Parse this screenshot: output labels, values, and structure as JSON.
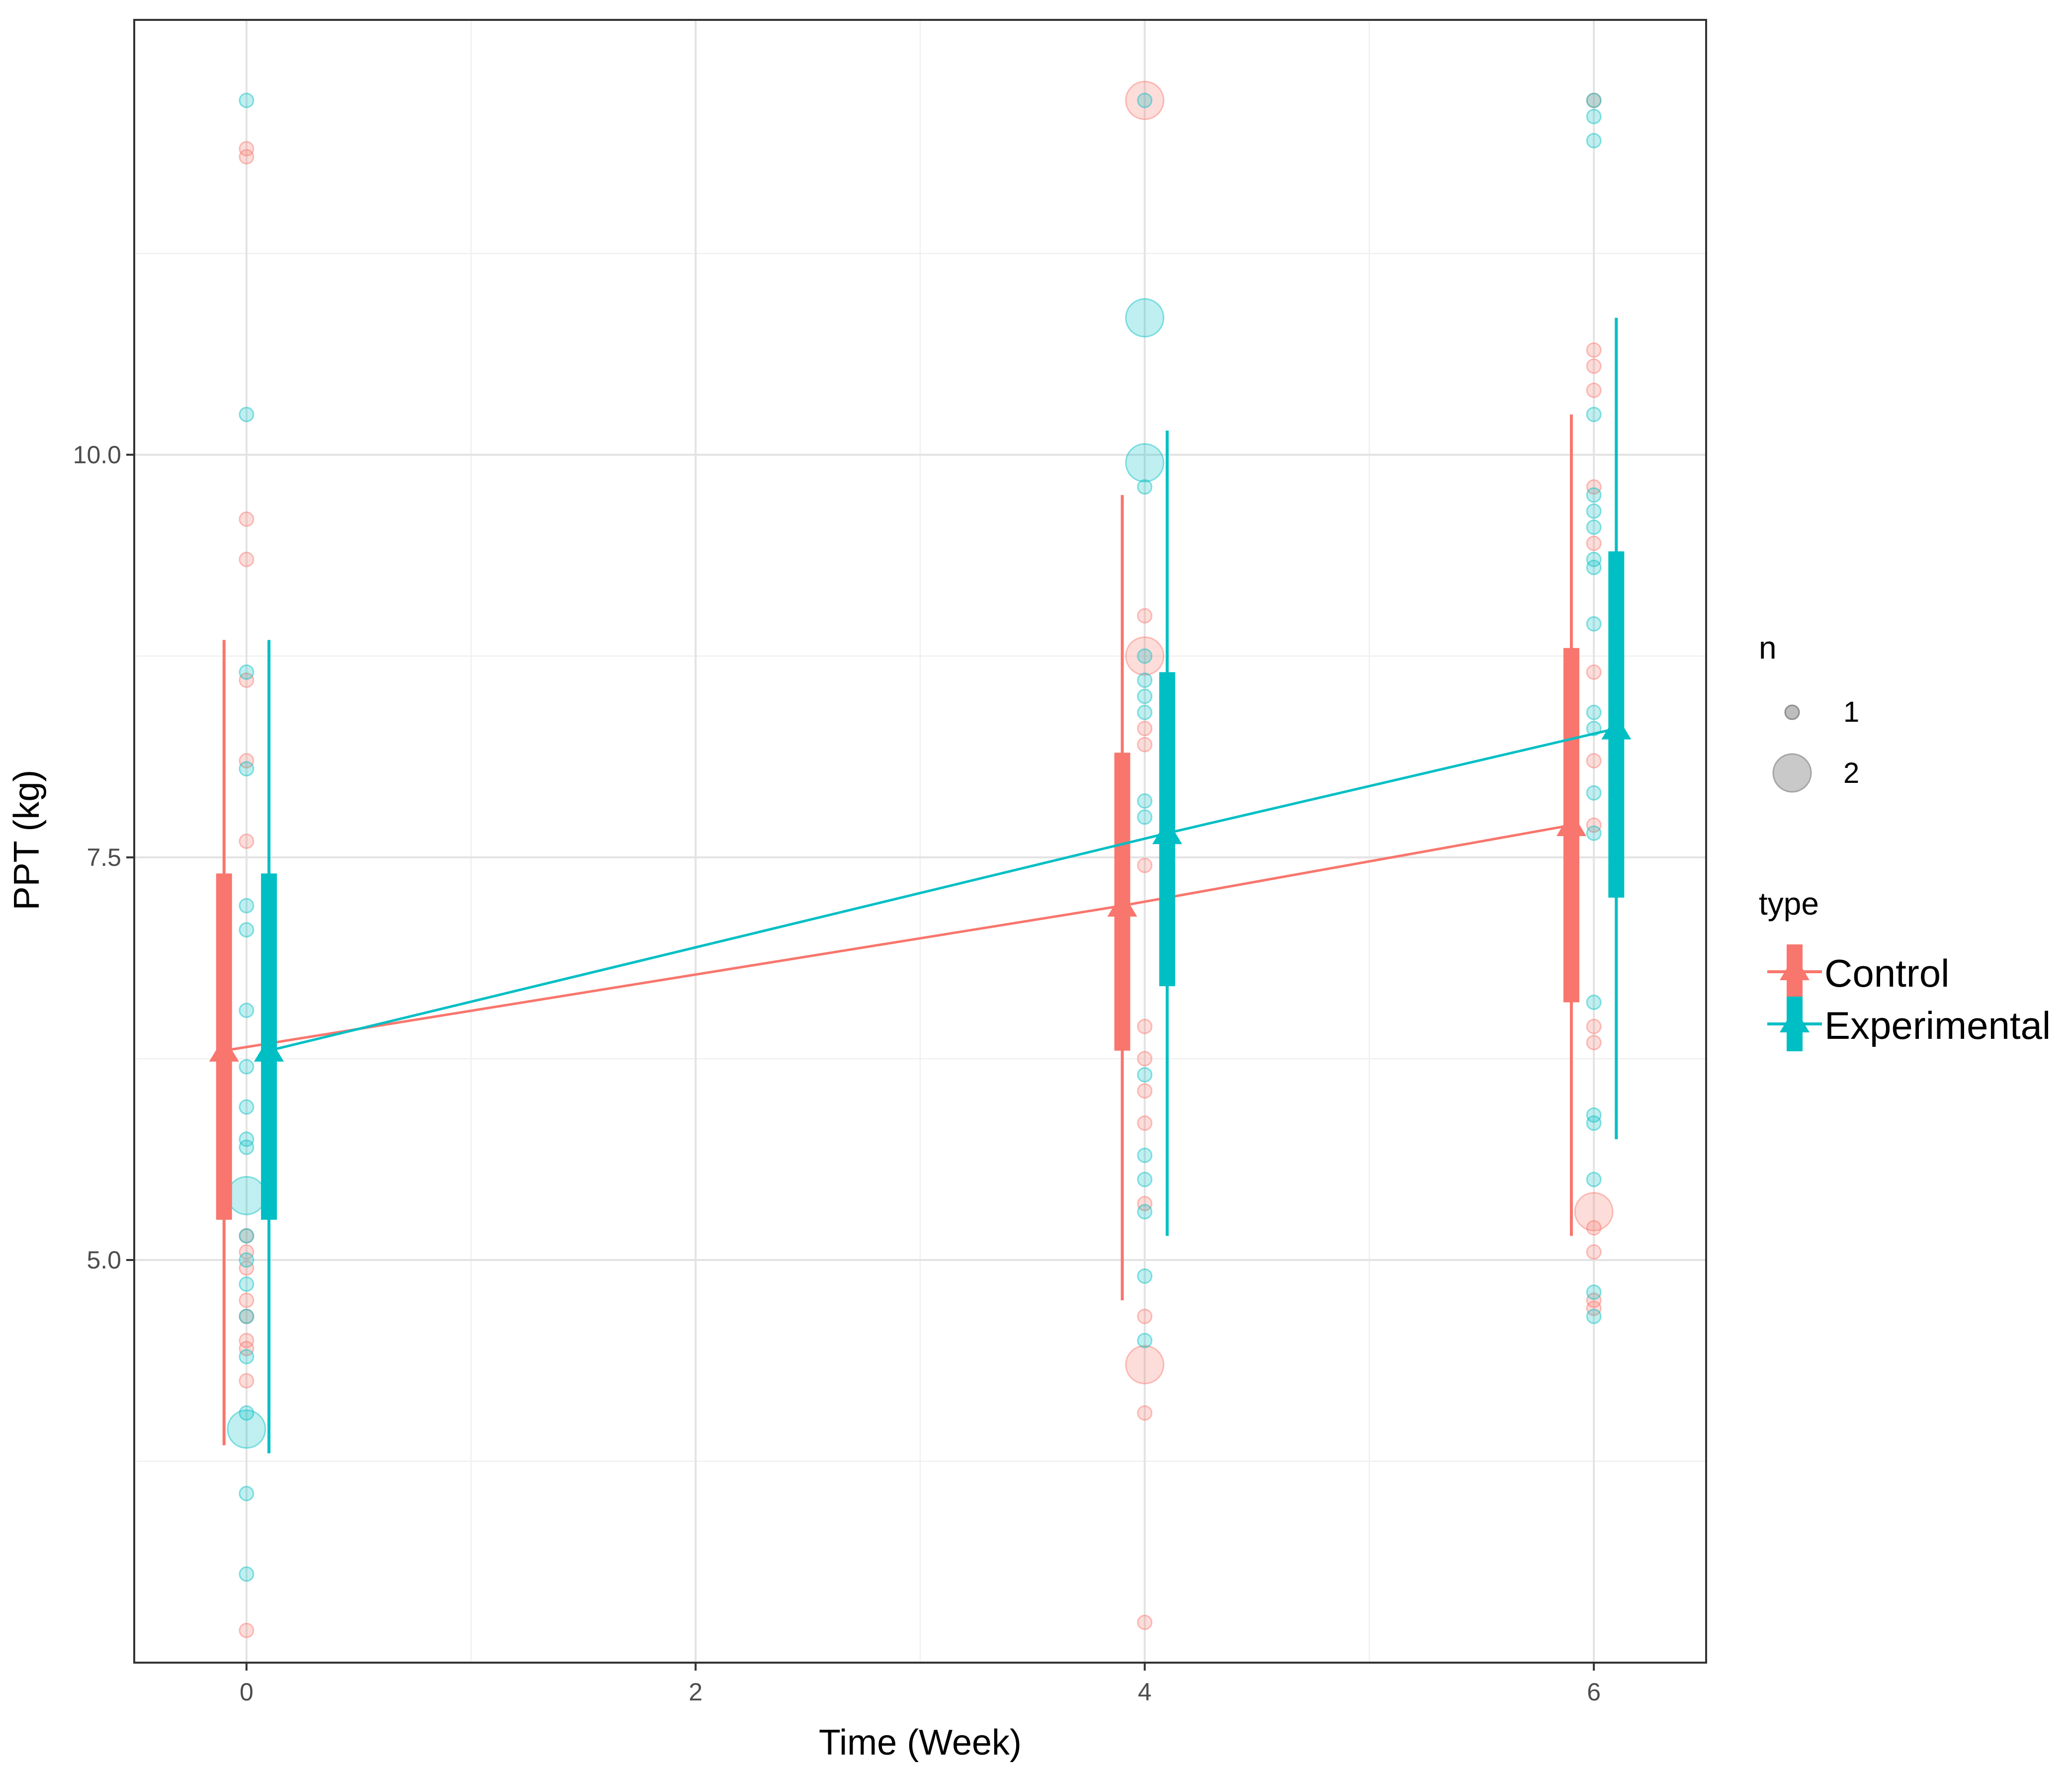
{
  "chart_data": {
    "type": "scatter",
    "xlabel": "Time (Week)",
    "ylabel": "PPT (kg)",
    "xlim": [
      -0.5,
      6.5
    ],
    "ylim": [
      2.5,
      12.7
    ],
    "x_ticks": [
      0,
      2,
      4,
      6
    ],
    "x_tick_labels": [
      "0",
      "2",
      "4",
      "6"
    ],
    "y_ticks": [
      5.0,
      7.5,
      10.0
    ],
    "y_tick_labels": [
      "5.0",
      "7.5",
      "10.0"
    ],
    "x_minor_grid": [
      1,
      3,
      5
    ],
    "y_minor_grid": [
      3.75,
      6.25,
      8.75,
      11.25
    ],
    "grid": true,
    "legend_position": "right",
    "legends": {
      "size": {
        "title": "n",
        "entries": [
          "1",
          "2"
        ]
      },
      "color": {
        "title": "type",
        "entries": [
          "Control",
          "Experimental"
        ]
      }
    },
    "series": [
      {
        "name": "Control",
        "color": "#F8766D",
        "x": [
          0,
          4,
          6
        ],
        "mean": [
          6.3,
          7.2,
          7.7
        ],
        "inner_range": [
          [
            5.25,
            7.4
          ],
          [
            6.3,
            8.15
          ],
          [
            6.6,
            8.8
          ]
        ],
        "outer_range": [
          [
            3.85,
            8.85
          ],
          [
            4.75,
            9.75
          ],
          [
            5.15,
            10.25
          ]
        ],
        "points": {
          "0": [
            [
              11.9,
              1
            ],
            [
              11.85,
              1
            ],
            [
              9.6,
              1
            ],
            [
              9.35,
              1
            ],
            [
              8.6,
              1
            ],
            [
              8.1,
              1
            ],
            [
              7.6,
              1
            ],
            [
              5.15,
              1
            ],
            [
              5.05,
              1
            ],
            [
              4.95,
              1
            ],
            [
              4.75,
              1
            ],
            [
              4.65,
              1
            ],
            [
              4.5,
              1
            ],
            [
              4.45,
              1
            ],
            [
              4.25,
              1
            ],
            [
              2.7,
              1
            ]
          ],
          "4": [
            [
              12.2,
              2
            ],
            [
              9.0,
              1
            ],
            [
              8.75,
              2
            ],
            [
              8.3,
              1
            ],
            [
              8.2,
              1
            ],
            [
              7.45,
              1
            ],
            [
              6.45,
              1
            ],
            [
              6.25,
              1
            ],
            [
              6.05,
              1
            ],
            [
              5.85,
              1
            ],
            [
              5.35,
              1
            ],
            [
              4.65,
              1
            ],
            [
              4.35,
              2
            ],
            [
              4.05,
              1
            ],
            [
              2.75,
              1
            ]
          ],
          "6": [
            [
              12.2,
              1
            ],
            [
              10.65,
              1
            ],
            [
              10.55,
              1
            ],
            [
              10.4,
              1
            ],
            [
              9.8,
              1
            ],
            [
              9.45,
              1
            ],
            [
              8.65,
              1
            ],
            [
              8.1,
              1
            ],
            [
              7.7,
              1
            ],
            [
              6.45,
              1
            ],
            [
              6.35,
              1
            ],
            [
              5.3,
              2
            ],
            [
              5.2,
              1
            ],
            [
              5.05,
              1
            ],
            [
              4.75,
              1
            ],
            [
              4.7,
              1
            ]
          ]
        }
      },
      {
        "name": "Experimental",
        "color": "#00BFC4",
        "x": [
          0,
          4,
          6
        ],
        "mean": [
          6.3,
          7.65,
          8.3
        ],
        "inner_range": [
          [
            5.25,
            7.4
          ],
          [
            6.7,
            8.65
          ],
          [
            7.25,
            9.4
          ]
        ],
        "outer_range": [
          [
            3.8,
            8.85
          ],
          [
            5.15,
            10.15
          ],
          [
            5.75,
            10.85
          ]
        ],
        "points": {
          "0": [
            [
              12.2,
              1
            ],
            [
              10.25,
              1
            ],
            [
              8.65,
              1
            ],
            [
              8.05,
              1
            ],
            [
              7.2,
              1
            ],
            [
              7.05,
              1
            ],
            [
              6.55,
              1
            ],
            [
              6.2,
              1
            ],
            [
              5.95,
              1
            ],
            [
              5.75,
              1
            ],
            [
              5.7,
              1
            ],
            [
              5.4,
              2
            ],
            [
              5.15,
              1
            ],
            [
              5.0,
              1
            ],
            [
              4.85,
              1
            ],
            [
              4.65,
              1
            ],
            [
              4.4,
              1
            ],
            [
              4.05,
              1
            ],
            [
              3.95,
              2
            ],
            [
              3.55,
              1
            ],
            [
              3.05,
              1
            ]
          ],
          "4": [
            [
              12.2,
              1
            ],
            [
              10.85,
              2
            ],
            [
              9.95,
              2
            ],
            [
              9.8,
              1
            ],
            [
              8.75,
              1
            ],
            [
              8.6,
              1
            ],
            [
              8.5,
              1
            ],
            [
              8.4,
              1
            ],
            [
              7.85,
              1
            ],
            [
              7.75,
              1
            ],
            [
              6.15,
              1
            ],
            [
              5.65,
              1
            ],
            [
              5.5,
              1
            ],
            [
              5.3,
              1
            ],
            [
              4.9,
              1
            ],
            [
              4.5,
              1
            ]
          ],
          "6": [
            [
              12.2,
              1
            ],
            [
              12.1,
              1
            ],
            [
              11.95,
              1
            ],
            [
              10.25,
              1
            ],
            [
              9.75,
              1
            ],
            [
              9.65,
              1
            ],
            [
              9.55,
              1
            ],
            [
              9.35,
              1
            ],
            [
              9.3,
              1
            ],
            [
              8.95,
              1
            ],
            [
              8.4,
              1
            ],
            [
              8.3,
              1
            ],
            [
              7.9,
              1
            ],
            [
              7.65,
              1
            ],
            [
              6.6,
              1
            ],
            [
              5.9,
              1
            ],
            [
              5.85,
              1
            ],
            [
              5.5,
              1
            ],
            [
              4.8,
              1
            ],
            [
              4.65,
              1
            ]
          ]
        }
      }
    ]
  }
}
